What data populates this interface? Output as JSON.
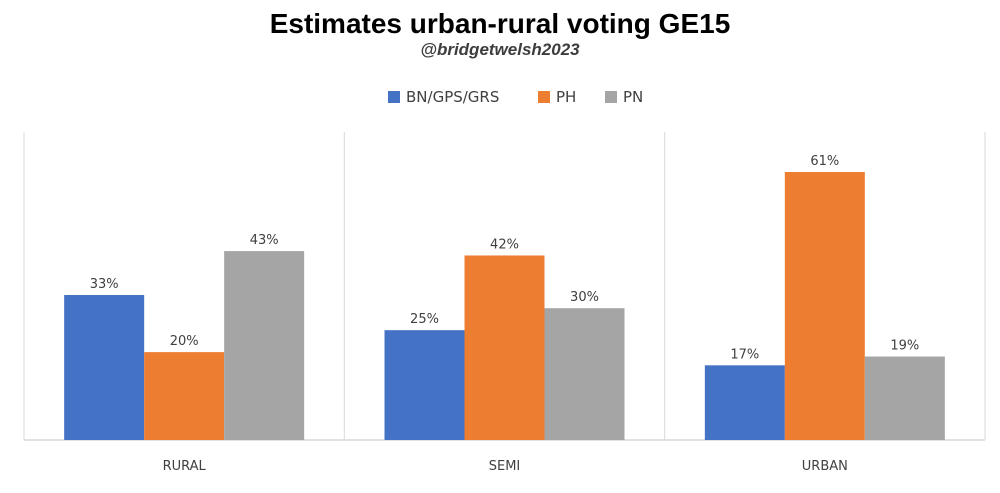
{
  "title": "Estimates urban-rural voting GE15",
  "subtitle": "@bridgetwelsh2023",
  "colors": {
    "BN/GPS/GRS": "#4472c4",
    "PH": "#ed7d31",
    "PN": "#a5a5a5"
  },
  "chart_data": {
    "type": "bar",
    "categories": [
      "RURAL",
      "SEMI",
      "URBAN"
    ],
    "series": [
      {
        "name": "BN/GPS/GRS",
        "values": [
          33,
          25,
          17
        ],
        "labels": [
          "33%",
          "25%",
          "17%"
        ]
      },
      {
        "name": "PH",
        "values": [
          20,
          42,
          61
        ],
        "labels": [
          "20%",
          "42%",
          "61%"
        ]
      },
      {
        "name": "PN",
        "values": [
          43,
          30,
          19
        ],
        "labels": [
          "43%",
          "30%",
          "19%"
        ]
      }
    ],
    "ylim": [
      0,
      70
    ],
    "grid": false,
    "legend_position": "top-center"
  }
}
